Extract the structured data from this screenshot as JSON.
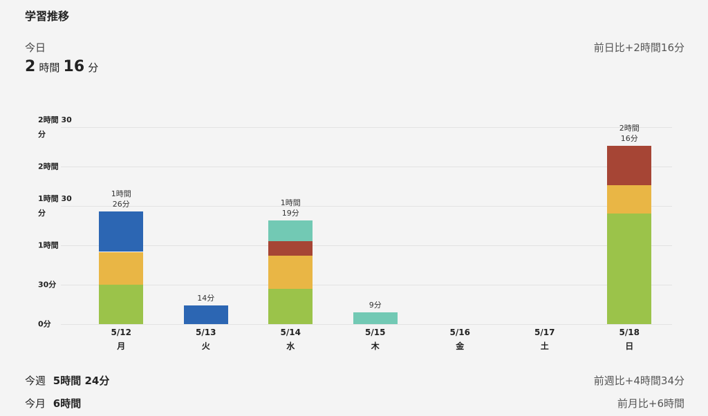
{
  "header": {
    "title": "学習推移",
    "today_label": "今日",
    "today_hours": 2,
    "today_hours_unit": "時間",
    "today_minutes": 16,
    "today_minutes_unit": "分",
    "compare_day": "前日比+2時間16分"
  },
  "chart_data": {
    "type": "stacked_bar",
    "categories": [
      "5/12",
      "5/13",
      "5/14",
      "5/15",
      "5/16",
      "5/17",
      "5/18"
    ],
    "weekdays": [
      "月",
      "火",
      "水",
      "木",
      "金",
      "土",
      "日"
    ],
    "series": [
      {
        "color": "#9bc34a",
        "values": [
          30,
          0,
          27,
          0,
          0,
          0,
          84
        ]
      },
      {
        "color": "#e9b645",
        "values": [
          25,
          0,
          25,
          0,
          0,
          0,
          22
        ]
      },
      {
        "color": "#a64535",
        "values": [
          0,
          0,
          11,
          0,
          0,
          0,
          30
        ]
      },
      {
        "color": "#72c9b4",
        "values": [
          0,
          0,
          16,
          9,
          0,
          0,
          0
        ]
      },
      {
        "color": "#2c66b3",
        "values": [
          31,
          14,
          0,
          0,
          0,
          0,
          0
        ]
      }
    ],
    "totals": [
      86,
      14,
      79,
      9,
      null,
      null,
      136
    ],
    "total_labels": [
      [
        "1時間",
        "26分"
      ],
      [
        "14分"
      ],
      [
        "1時間",
        "19分"
      ],
      [
        "9分"
      ],
      null,
      null,
      [
        "2時間",
        "16分"
      ]
    ],
    "ylim": [
      0,
      150
    ],
    "yticks": [
      {
        "value": 0,
        "label": "0分"
      },
      {
        "value": 30,
        "label": "30分"
      },
      {
        "value": 60,
        "label": "1時間"
      },
      {
        "value": 90,
        "label": "1時間 30分"
      },
      {
        "value": 120,
        "label": "2時間"
      },
      {
        "value": 150,
        "label": "2時間 30分"
      }
    ],
    "grid": true
  },
  "footer": {
    "week_label": "今週",
    "week_value": "5時間 24分",
    "week_compare": "前週比+4時間34分",
    "month_label": "今月",
    "month_value": "6時間",
    "month_compare": "前月比+6時間"
  }
}
